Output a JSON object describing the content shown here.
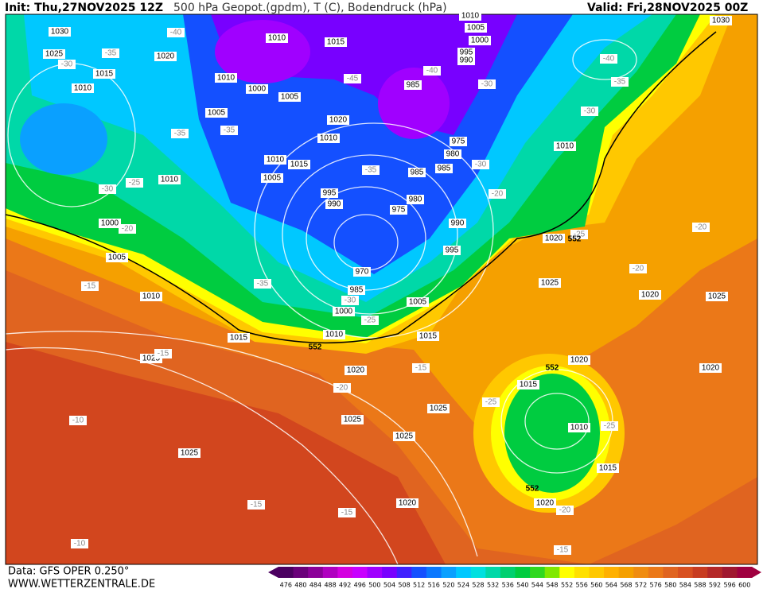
{
  "header": {
    "init": "Init: Thu,27NOV2025 12Z",
    "title": "500 hPa Geopot.(gpdm), T (C), Bodendruck (hPa)",
    "valid": "Valid: Fri,28NOV2025 00Z"
  },
  "footer": {
    "data_source": "Data: GFS OPER 0.250°",
    "website": "WWW.WETTERZENTRALE.DE"
  },
  "map": {
    "pressure_labels": [
      "1030",
      "1025",
      "1015",
      "1010",
      "1020",
      "1010",
      "1015",
      "1010",
      "1000",
      "1005",
      "1005",
      "1020",
      "1010",
      "1010",
      "1015",
      "1005",
      "995",
      "990",
      "975",
      "980",
      "985",
      "985",
      "980",
      "975",
      "985",
      "1005",
      "1000",
      "995",
      "990",
      "1010",
      "1010",
      "1030",
      "1010",
      "1000",
      "1005",
      "1010",
      "970",
      "985",
      "1000",
      "1005",
      "1010",
      "1015",
      "1015",
      "990",
      "995",
      "1020",
      "1025",
      "1020",
      "1025",
      "1020",
      "1025",
      "1015",
      "1020",
      "1020",
      "1025",
      "1025",
      "1025",
      "1010",
      "1025",
      "1015",
      "1020",
      "1020"
    ],
    "temperature_labels": [
      "-40",
      "-35",
      "-30",
      "-35",
      "-35",
      "-45",
      "-40",
      "-30",
      "-35",
      "-40",
      "-30",
      "-30",
      "-35",
      "-20",
      "-25",
      "-30",
      "-20",
      "-25",
      "-15",
      "-35",
      "-30",
      "-25",
      "-20",
      "-20",
      "-15",
      "-20",
      "-25",
      "-25",
      "-10",
      "-15",
      "-15",
      "-20",
      "-10",
      "-15",
      "-15"
    ],
    "height_labels": [
      "552",
      "552",
      "552",
      "552"
    ]
  },
  "legend": {
    "levels": [
      476,
      480,
      484,
      488,
      492,
      496,
      500,
      504,
      508,
      512,
      516,
      520,
      524,
      528,
      532,
      536,
      540,
      544,
      548,
      552,
      556,
      560,
      564,
      568,
      572,
      576,
      580,
      584,
      588,
      592,
      596,
      600
    ],
    "colors": [
      "#4b0060",
      "#6a007a",
      "#8b0099",
      "#b000c0",
      "#d400e0",
      "#c800ff",
      "#a000ff",
      "#7800ff",
      "#4020ff",
      "#1450ff",
      "#0a78ff",
      "#0aa0ff",
      "#00c8ff",
      "#00e0e0",
      "#00d8a8",
      "#00d070",
      "#00cc40",
      "#30d820",
      "#80e800",
      "#ffff00",
      "#ffe000",
      "#ffc800",
      "#ffb000",
      "#f5a000",
      "#f08c10",
      "#eb7818",
      "#e06420",
      "#d85020",
      "#c83c20",
      "#b42828",
      "#a01830",
      "#a00040"
    ]
  }
}
